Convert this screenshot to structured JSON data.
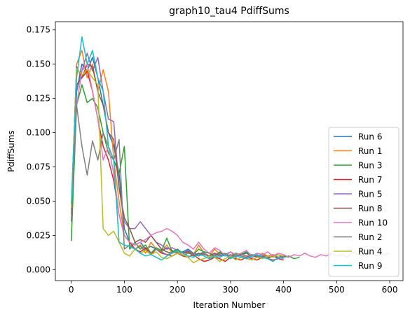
{
  "chart_data": {
    "type": "line",
    "title": "graph10_tau4 PdiffSums",
    "xlabel": "Iteration Number",
    "ylabel": "PdiffSums",
    "xlim": [
      -30,
      625
    ],
    "ylim": [
      -0.008,
      0.181
    ],
    "xticks": [
      "0",
      "100",
      "200",
      "300",
      "400",
      "500",
      "600"
    ],
    "yticks": [
      "0.000",
      "0.025",
      "0.050",
      "0.075",
      "0.100",
      "0.125",
      "0.150",
      "0.175"
    ],
    "grid": false,
    "legend_position": "lower right",
    "series": [
      {
        "name": "Run 6",
        "color": "#1f77b4",
        "x": [
          0,
          10,
          20,
          30,
          40,
          50,
          60,
          70,
          80,
          90,
          100,
          110,
          120,
          130,
          140,
          150,
          160,
          170,
          180,
          190,
          200,
          210,
          220,
          230,
          240,
          250,
          260,
          270,
          280,
          290,
          300,
          310,
          320,
          330,
          340,
          350,
          360,
          370,
          380,
          390,
          400,
          410
        ],
        "y": [
          0.045,
          0.13,
          0.15,
          0.145,
          0.155,
          0.14,
          0.12,
          0.1,
          0.09,
          0.07,
          0.03,
          0.02,
          0.018,
          0.02,
          0.015,
          0.017,
          0.015,
          0.013,
          0.016,
          0.014,
          0.012,
          0.013,
          0.015,
          0.012,
          0.011,
          0.013,
          0.012,
          0.01,
          0.012,
          0.011,
          0.013,
          0.01,
          0.011,
          0.012,
          0.01,
          0.011,
          0.009,
          0.01,
          0.011,
          0.009,
          0.01,
          0.009
        ]
      },
      {
        "name": "Run 1",
        "color": "#ff7f0e",
        "x": [
          0,
          10,
          20,
          30,
          40,
          50,
          60,
          70,
          80,
          90,
          100,
          110,
          120,
          130,
          140,
          150,
          160,
          170,
          180,
          190,
          200,
          210,
          220,
          230,
          240,
          250,
          260,
          270,
          280,
          290,
          300,
          310,
          320,
          330,
          340,
          350,
          360,
          370,
          380,
          390,
          400
        ],
        "y": [
          0.04,
          0.15,
          0.16,
          0.14,
          0.15,
          0.13,
          0.146,
          0.13,
          0.08,
          0.05,
          0.025,
          0.02,
          0.015,
          0.018,
          0.012,
          0.02,
          0.015,
          0.013,
          0.018,
          0.012,
          0.015,
          0.01,
          0.013,
          0.011,
          0.018,
          0.012,
          0.01,
          0.015,
          0.011,
          0.01,
          0.013,
          0.009,
          0.012,
          0.01,
          0.011,
          0.009,
          0.012,
          0.01,
          0.011,
          0.009,
          0.01
        ]
      },
      {
        "name": "Run 3",
        "color": "#2ca02c",
        "x": [
          0,
          10,
          20,
          30,
          40,
          50,
          60,
          70,
          80,
          90,
          100,
          110,
          120,
          130,
          140,
          150,
          160,
          170,
          180,
          190,
          200,
          210,
          220,
          230,
          240,
          250,
          260,
          270,
          280,
          290,
          300,
          310,
          320,
          330,
          340,
          350,
          360,
          370,
          380,
          390,
          400,
          410,
          420,
          430
        ],
        "y": [
          0.021,
          0.12,
          0.135,
          0.122,
          0.125,
          0.118,
          0.1,
          0.085,
          0.08,
          0.07,
          0.09,
          0.015,
          0.02,
          0.015,
          0.018,
          0.012,
          0.016,
          0.014,
          0.023,
          0.013,
          0.015,
          0.012,
          0.014,
          0.011,
          0.015,
          0.013,
          0.012,
          0.01,
          0.013,
          0.011,
          0.01,
          0.012,
          0.011,
          0.013,
          0.01,
          0.012,
          0.011,
          0.009,
          0.01,
          0.011,
          0.009,
          0.01,
          0.008,
          0.009
        ]
      },
      {
        "name": "Run 7",
        "color": "#d62728",
        "x": [
          0,
          10,
          20,
          30,
          40,
          50,
          60,
          70,
          80,
          90,
          100,
          110,
          120,
          130,
          140,
          150,
          160,
          170,
          180,
          190,
          200,
          210,
          220,
          230,
          240,
          250,
          260,
          270,
          280,
          290,
          300,
          310,
          320,
          330,
          340,
          350,
          360,
          370,
          380,
          390,
          400
        ],
        "y": [
          0.044,
          0.148,
          0.14,
          0.145,
          0.13,
          0.11,
          0.09,
          0.08,
          0.065,
          0.04,
          0.025,
          0.02,
          0.015,
          0.013,
          0.016,
          0.011,
          0.015,
          0.012,
          0.011,
          0.01,
          0.012,
          0.01,
          0.009,
          0.011,
          0.008,
          0.006,
          0.007,
          0.009,
          0.008,
          0.006,
          0.009,
          0.008,
          0.007,
          0.009,
          0.008,
          0.007,
          0.009,
          0.008,
          0.007,
          0.008,
          0.007
        ]
      },
      {
        "name": "Run 5",
        "color": "#9467bd",
        "x": [
          0,
          10,
          20,
          30,
          40,
          50,
          60,
          70,
          80,
          90,
          100,
          110,
          120,
          130,
          140,
          150,
          160,
          170,
          180,
          190,
          200,
          210,
          220,
          230,
          240,
          250,
          260,
          270,
          280,
          290,
          300,
          310,
          320,
          330,
          340,
          350,
          360,
          370,
          380,
          390,
          400
        ],
        "y": [
          0.04,
          0.13,
          0.145,
          0.158,
          0.145,
          0.155,
          0.13,
          0.11,
          0.108,
          0.06,
          0.035,
          0.03,
          0.03,
          0.035,
          0.03,
          0.025,
          0.02,
          0.018,
          0.015,
          0.016,
          0.014,
          0.012,
          0.014,
          0.012,
          0.011,
          0.012,
          0.01,
          0.012,
          0.011,
          0.01,
          0.011,
          0.009,
          0.011,
          0.01,
          0.009,
          0.01,
          0.011,
          0.009,
          0.01,
          0.008,
          0.009
        ]
      },
      {
        "name": "Run 8",
        "color": "#8c564b",
        "x": [
          0,
          10,
          20,
          30,
          40,
          50,
          60,
          70,
          80,
          90,
          100,
          110,
          120,
          130,
          140,
          150,
          160,
          170,
          180,
          190,
          200,
          210,
          220,
          230,
          240,
          250,
          260,
          270,
          280,
          290,
          300,
          310,
          320,
          330,
          340,
          350,
          360,
          370,
          380,
          390,
          400
        ],
        "y": [
          0.045,
          0.135,
          0.14,
          0.15,
          0.148,
          0.13,
          0.12,
          0.1,
          0.095,
          0.06,
          0.038,
          0.03,
          0.02,
          0.022,
          0.02,
          0.025,
          0.02,
          0.015,
          0.013,
          0.012,
          0.014,
          0.012,
          0.013,
          0.01,
          0.012,
          0.011,
          0.01,
          0.012,
          0.01,
          0.011,
          0.009,
          0.011,
          0.01,
          0.009,
          0.011,
          0.009,
          0.01,
          0.008,
          0.01,
          0.009,
          0.01
        ]
      },
      {
        "name": "Run 10",
        "color": "#e377c2",
        "x": [
          0,
          10,
          20,
          30,
          40,
          50,
          60,
          70,
          80,
          90,
          100,
          110,
          120,
          130,
          140,
          150,
          160,
          170,
          180,
          190,
          200,
          210,
          220,
          230,
          240,
          250,
          260,
          270,
          280,
          290,
          300,
          310,
          320,
          330,
          340,
          350,
          360,
          370,
          380,
          390,
          400,
          410,
          420,
          430,
          440,
          450,
          460,
          470,
          480,
          490,
          500,
          510,
          520,
          530,
          540,
          550,
          560,
          570,
          580,
          590,
          600
        ],
        "y": [
          0.04,
          0.12,
          0.145,
          0.15,
          0.13,
          0.11,
          0.08,
          0.09,
          0.07,
          0.04,
          0.025,
          0.02,
          0.018,
          0.02,
          0.022,
          0.025,
          0.027,
          0.028,
          0.03,
          0.028,
          0.025,
          0.02,
          0.018,
          0.015,
          0.02,
          0.015,
          0.012,
          0.016,
          0.014,
          0.01,
          0.013,
          0.011,
          0.012,
          0.014,
          0.01,
          0.012,
          0.011,
          0.013,
          0.01,
          0.012,
          0.011,
          0.009,
          0.011,
          0.01,
          0.012,
          0.01,
          0.009,
          0.011,
          0.01,
          0.012,
          0.01,
          0.011,
          0.009,
          0.013,
          0.011,
          0.01,
          0.012,
          0.011,
          0.01,
          0.011,
          0.012
        ]
      },
      {
        "name": "Run 2",
        "color": "#7f7f7f",
        "x": [
          0,
          10,
          20,
          30,
          40,
          50,
          60,
          70,
          80,
          90,
          100,
          110,
          120,
          130,
          140,
          150,
          160,
          170,
          180,
          190,
          200,
          210,
          220,
          230,
          240,
          250,
          260,
          270,
          280,
          290,
          300,
          310,
          320,
          330,
          340,
          350,
          360,
          370,
          380,
          390,
          400
        ],
        "y": [
          0.035,
          0.12,
          0.09,
          0.069,
          0.094,
          0.08,
          0.1,
          0.09,
          0.08,
          0.095,
          0.015,
          0.018,
          0.015,
          0.017,
          0.014,
          0.012,
          0.015,
          0.013,
          0.011,
          0.012,
          0.013,
          0.01,
          0.012,
          0.011,
          0.01,
          0.012,
          0.009,
          0.011,
          0.01,
          0.012,
          0.009,
          0.011,
          0.01,
          0.009,
          0.011,
          0.01,
          0.008,
          0.01,
          0.009,
          0.011,
          0.009
        ]
      },
      {
        "name": "Run 4",
        "color": "#bcbd22",
        "x": [
          0,
          10,
          20,
          30,
          40,
          50,
          60,
          70,
          80,
          90,
          100,
          110,
          120,
          130,
          140,
          150,
          160,
          170,
          180,
          190,
          200,
          210,
          220,
          230,
          240,
          250,
          260,
          270,
          280,
          290,
          300,
          310,
          320,
          330,
          340,
          350,
          360,
          370,
          380,
          390,
          400
        ],
        "y": [
          0.045,
          0.147,
          0.142,
          0.146,
          0.14,
          0.135,
          0.03,
          0.025,
          0.028,
          0.02,
          0.012,
          0.01,
          0.015,
          0.012,
          0.014,
          0.011,
          0.013,
          0.009,
          0.008,
          0.01,
          0.012,
          0.011,
          0.009,
          0.005,
          0.007,
          0.008,
          0.01,
          0.009,
          0.006,
          0.008,
          0.01,
          0.007,
          0.009,
          0.008,
          0.007,
          0.009,
          0.008,
          0.01,
          0.009,
          0.011,
          0.01
        ]
      },
      {
        "name": "Run 9",
        "color": "#17becf",
        "x": [
          0,
          10,
          20,
          30,
          40,
          50,
          60,
          70,
          80,
          90,
          100,
          110,
          120,
          130,
          140,
          150,
          160,
          170,
          180,
          190,
          200,
          210,
          220,
          230,
          240,
          250,
          260,
          270,
          280,
          290,
          300,
          310,
          320,
          330,
          340,
          350,
          360,
          370,
          380,
          390,
          400
        ],
        "y": [
          0.048,
          0.14,
          0.17,
          0.15,
          0.16,
          0.14,
          0.13,
          0.09,
          0.08,
          0.02,
          0.018,
          0.017,
          0.015,
          0.012,
          0.01,
          0.011,
          0.009,
          0.007,
          0.01,
          0.012,
          0.014,
          0.012,
          0.01,
          0.009,
          0.011,
          0.01,
          0.008,
          0.01,
          0.009,
          0.011,
          0.008,
          0.01,
          0.009,
          0.008,
          0.01,
          0.011,
          0.009,
          0.008,
          0.006,
          0.009,
          0.008
        ]
      }
    ]
  }
}
